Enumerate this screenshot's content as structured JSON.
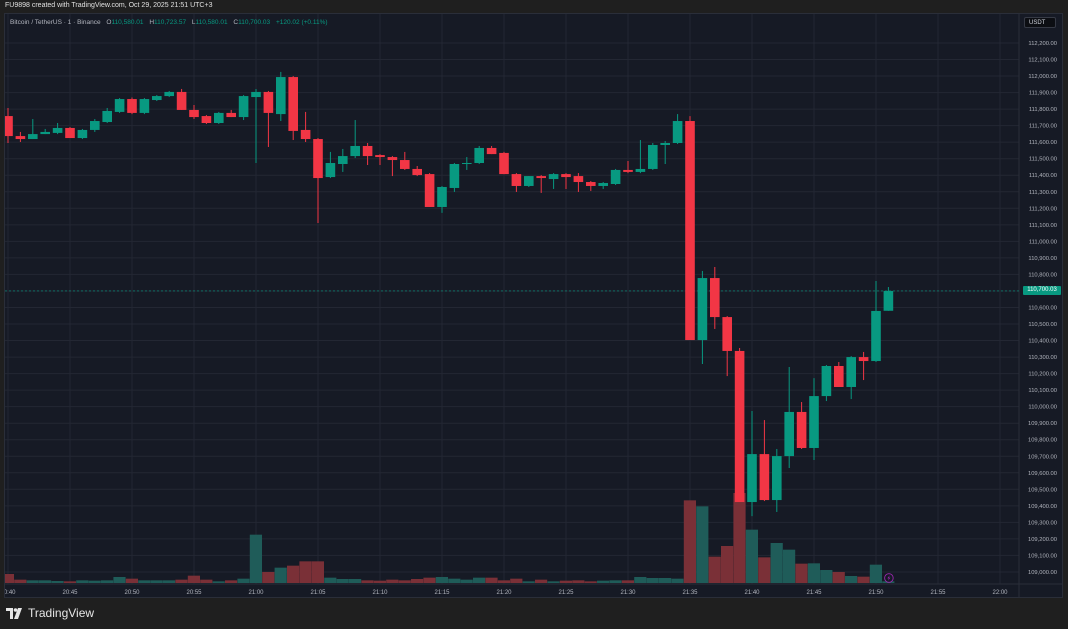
{
  "caption": "FU9898 created with TradingView.com, Oct 29, 2025 21:51 UTC+3",
  "legend": {
    "symbol": "Bitcoin / TetherUS · 1 · Binance",
    "open_label": "O",
    "open": "110,580.01",
    "high_label": "H",
    "high": "110,723.57",
    "low_label": "L",
    "low": "110,580.01",
    "close_label": "C",
    "close": "110,700.03",
    "change": "+120.02 (+0.11%)"
  },
  "currency_unit": "USDT",
  "last_price_label": "110,700.03",
  "brand": "TradingView",
  "colors": {
    "up": "#089981",
    "down": "#f23645",
    "background": "#161a25",
    "alert": "#9c27b0"
  },
  "icons": {
    "alert": "lightning-alert-icon",
    "logo": "tradingview-logo-icon"
  },
  "chart_data": {
    "type": "candlestick",
    "symbol": "BTCUSDT",
    "interval": "1m",
    "start_time": "20:40",
    "time_ticks": [
      "20:40",
      "20:45",
      "20:50",
      "20:55",
      "21:00",
      "21:05",
      "21:10",
      "21:15",
      "21:20",
      "21:25",
      "21:30",
      "21:35",
      "21:40",
      "21:45",
      "21:50",
      "21:55",
      "22:00"
    ],
    "price_ticks": [
      112200,
      112100,
      112000,
      111900,
      111800,
      111700,
      111600,
      111500,
      111400,
      111300,
      111200,
      111100,
      111000,
      110900,
      110800,
      110700,
      110600,
      110500,
      110400,
      110300,
      110200,
      110100,
      110000,
      109900,
      109800,
      109700,
      109600,
      109500,
      109400,
      109300,
      109200,
      109100,
      109000
    ],
    "ylim": [
      108950,
      112250
    ],
    "last_price": 110700.03,
    "ohlc": [
      [
        111758,
        111807,
        111595,
        111637
      ],
      [
        111637,
        111662,
        111601,
        111619
      ],
      [
        111619,
        111740,
        111619,
        111649
      ],
      [
        111649,
        111680,
        111649,
        111662
      ],
      [
        111656,
        111716,
        111649,
        111686
      ],
      [
        111686,
        111692,
        111625,
        111625
      ],
      [
        111625,
        111680,
        111619,
        111674
      ],
      [
        111674,
        111740,
        111662,
        111728
      ],
      [
        111722,
        111807,
        111716,
        111789
      ],
      [
        111783,
        111867,
        111777,
        111861
      ],
      [
        111861,
        111870,
        111770,
        111777
      ],
      [
        111777,
        111867,
        111770,
        111861
      ],
      [
        111855,
        111885,
        111849,
        111879
      ],
      [
        111879,
        111910,
        111873,
        111904
      ],
      [
        111904,
        111922,
        111795,
        111795
      ],
      [
        111795,
        111825,
        111740,
        111752
      ],
      [
        111758,
        111764,
        111710,
        111716
      ],
      [
        111716,
        111783,
        111710,
        111777
      ],
      [
        111777,
        111795,
        111752,
        111752
      ],
      [
        111752,
        111885,
        111734,
        111879
      ],
      [
        111873,
        111922,
        111474,
        111904
      ],
      [
        111904,
        111910,
        111571,
        111777
      ],
      [
        111770,
        112025,
        111728,
        111994
      ],
      [
        111994,
        112000,
        111613,
        111668
      ],
      [
        111674,
        111783,
        111601,
        111619
      ],
      [
        111619,
        111625,
        111111,
        111383
      ],
      [
        111389,
        111541,
        111383,
        111474
      ],
      [
        111468,
        111559,
        111420,
        111516
      ],
      [
        111516,
        111734,
        111504,
        111577
      ],
      [
        111577,
        111595,
        111462,
        111516
      ],
      [
        111522,
        111528,
        111462,
        111510
      ],
      [
        111510,
        111516,
        111395,
        111492
      ],
      [
        111492,
        111541,
        111432,
        111438
      ],
      [
        111438,
        111456,
        111395,
        111401
      ],
      [
        111407,
        111413,
        111208,
        111208
      ],
      [
        111208,
        111335,
        111172,
        111329
      ],
      [
        111323,
        111474,
        111299,
        111468
      ],
      [
        111468,
        111510,
        111432,
        111474
      ],
      [
        111474,
        111577,
        111468,
        111565
      ],
      [
        111565,
        111577,
        111528,
        111528
      ],
      [
        111535,
        111541,
        111407,
        111407
      ],
      [
        111407,
        111413,
        111299,
        111335
      ],
      [
        111335,
        111395,
        111329,
        111395
      ],
      [
        111395,
        111401,
        111293,
        111383
      ],
      [
        111377,
        111413,
        111317,
        111407
      ],
      [
        111407,
        111413,
        111317,
        111389
      ],
      [
        111395,
        111413,
        111299,
        111359
      ],
      [
        111359,
        111365,
        111305,
        111335
      ],
      [
        111335,
        111359,
        111317,
        111353
      ],
      [
        111347,
        111438,
        111341,
        111432
      ],
      [
        111432,
        111486,
        111413,
        111420
      ],
      [
        111420,
        111613,
        111413,
        111438
      ],
      [
        111438,
        111595,
        111432,
        111583
      ],
      [
        111583,
        111607,
        111468,
        111595
      ],
      [
        111595,
        111770,
        111589,
        111728
      ],
      [
        111728,
        111758,
        110403,
        110403
      ],
      [
        110403,
        110821,
        110258,
        110778
      ],
      [
        110778,
        110845,
        110470,
        110542
      ],
      [
        110542,
        110548,
        110185,
        110337
      ],
      [
        110337,
        110355,
        109423,
        109423
      ],
      [
        109423,
        109974,
        109338,
        109713
      ],
      [
        109713,
        109919,
        109429,
        109435
      ],
      [
        109435,
        109744,
        109363,
        109701
      ],
      [
        109701,
        110240,
        109629,
        109968
      ],
      [
        109968,
        110028,
        109744,
        109750
      ],
      [
        109750,
        110173,
        109677,
        110064
      ],
      [
        110064,
        110252,
        110034,
        110246
      ],
      [
        110246,
        110270,
        110119,
        110119
      ],
      [
        110119,
        110306,
        110046,
        110300
      ],
      [
        110300,
        110331,
        110161,
        110276
      ],
      [
        110276,
        110760,
        110270,
        110579
      ],
      [
        110580.01,
        110723.57,
        110580.01,
        110700.03
      ]
    ],
    "volume": [
      27,
      10,
      8,
      8,
      6,
      5,
      8,
      7,
      8,
      18,
      13,
      8,
      8,
      8,
      10,
      22,
      10,
      5,
      8,
      13,
      145,
      33,
      46,
      52,
      65,
      65,
      16,
      12,
      12,
      8,
      7,
      10,
      8,
      12,
      16,
      18,
      13,
      10,
      16,
      16,
      8,
      13,
      5,
      10,
      5,
      7,
      8,
      5,
      7,
      8,
      8,
      18,
      15,
      15,
      13,
      248,
      230,
      79,
      111,
      270,
      160,
      77,
      120,
      100,
      58,
      59,
      39,
      33,
      21,
      19,
      55,
      5
    ]
  }
}
